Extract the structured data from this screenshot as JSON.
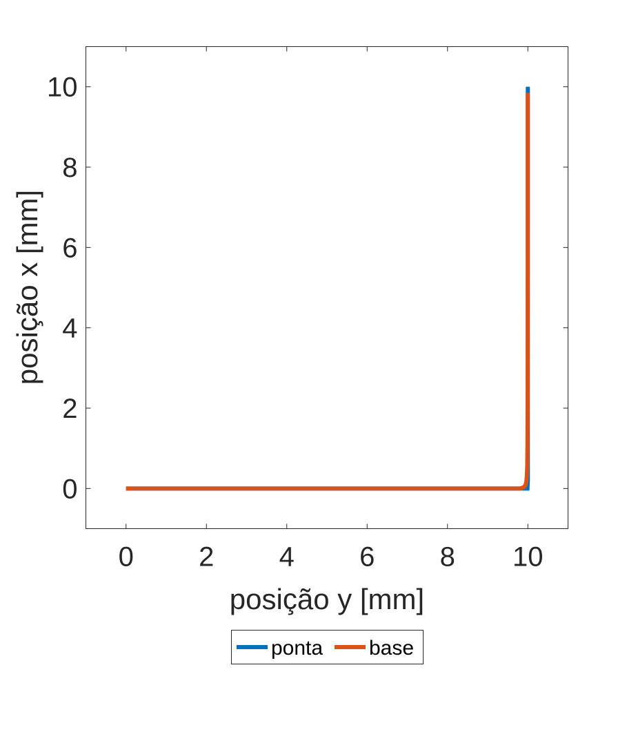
{
  "chart_data": {
    "type": "line",
    "title": "",
    "xlabel": "posição y [mm]",
    "ylabel": "posição x [mm]",
    "xlim": [
      -1,
      11
    ],
    "ylim": [
      -1,
      11
    ],
    "xticks": [
      0,
      2,
      4,
      6,
      8,
      10
    ],
    "yticks": [
      0,
      2,
      4,
      6,
      8,
      10
    ],
    "grid": false,
    "legend_position": "bottom-outside",
    "series": [
      {
        "name": "ponta",
        "color": "#0072BD",
        "x": [
          0,
          2,
          4,
          6,
          8,
          9,
          9.8,
          9.92,
          9.97,
          9.99,
          10,
          10,
          10,
          10
        ],
        "y": [
          0,
          0,
          0,
          0,
          0,
          0,
          0,
          0,
          0,
          0,
          0.2,
          1,
          5,
          10
        ]
      },
      {
        "name": "base",
        "color": "#D95319",
        "x": [
          0,
          2,
          4,
          6,
          8,
          9,
          9.8,
          9.9,
          9.94,
          9.96,
          9.975,
          9.985,
          9.99,
          9.995,
          9.997,
          9.998,
          9.998
        ],
        "y": [
          0,
          0,
          0,
          0,
          0,
          0,
          0,
          0.03,
          0.08,
          0.15,
          0.3,
          0.55,
          1,
          2,
          4,
          7,
          9.85
        ]
      }
    ]
  }
}
